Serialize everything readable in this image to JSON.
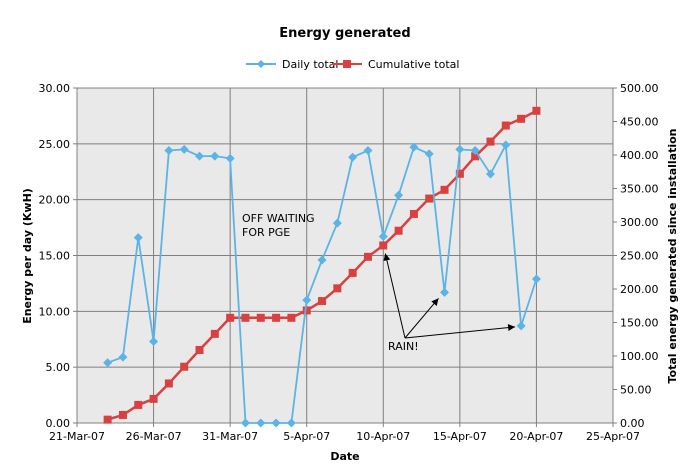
{
  "chart_data": {
    "type": "line",
    "title": "Energy generated",
    "xlabel": "Date",
    "ylabel": "Energy per day (KwH)",
    "y2label": "Total energy generated since installation",
    "xlim": [
      "2007-03-21",
      "2007-04-25"
    ],
    "ylim": [
      0,
      30
    ],
    "y2lim": [
      0,
      500
    ],
    "x_ticks": [
      "21-Mar-07",
      "26-Mar-07",
      "31-Mar-07",
      "5-Apr-07",
      "10-Apr-07",
      "15-Apr-07",
      "20-Apr-07",
      "25-Apr-07"
    ],
    "y_ticks": [
      "0.00",
      "5.00",
      "10.00",
      "15.00",
      "20.00",
      "25.00",
      "30.00"
    ],
    "y2_ticks": [
      "0.00",
      "50.00",
      "100.00",
      "150.00",
      "200.00",
      "250.00",
      "300.00",
      "350.00",
      "400.00",
      "450.00",
      "500.00"
    ],
    "grid": true,
    "legend": "top",
    "series": [
      {
        "name": "Daily total",
        "axis": "left",
        "color": "#5bb4e5",
        "marker": "diamond",
        "x": [
          "2007-03-23",
          "2007-03-24",
          "2007-03-25",
          "2007-03-26",
          "2007-03-27",
          "2007-03-28",
          "2007-03-29",
          "2007-03-30",
          "2007-03-31",
          "2007-04-01",
          "2007-04-02",
          "2007-04-03",
          "2007-04-04",
          "2007-04-05",
          "2007-04-06",
          "2007-04-07",
          "2007-04-08",
          "2007-04-09",
          "2007-04-10",
          "2007-04-11",
          "2007-04-12",
          "2007-04-13",
          "2007-04-14",
          "2007-04-15",
          "2007-04-16",
          "2007-04-17",
          "2007-04-18",
          "2007-04-19",
          "2007-04-20"
        ],
        "values": [
          5.4,
          5.9,
          16.6,
          7.3,
          24.4,
          24.5,
          23.9,
          23.9,
          23.7,
          0,
          0,
          0,
          0,
          11.0,
          14.6,
          17.9,
          23.8,
          24.4,
          16.7,
          20.4,
          24.7,
          24.1,
          11.7,
          24.5,
          24.4,
          22.3,
          24.9,
          8.7,
          12.9
        ]
      },
      {
        "name": "Cumulative total",
        "axis": "right",
        "color": "#d94040",
        "marker": "square",
        "x": [
          "2007-03-23",
          "2007-03-24",
          "2007-03-25",
          "2007-03-26",
          "2007-03-27",
          "2007-03-28",
          "2007-03-29",
          "2007-03-30",
          "2007-03-31",
          "2007-04-01",
          "2007-04-02",
          "2007-04-03",
          "2007-04-04",
          "2007-04-05",
          "2007-04-06",
          "2007-04-07",
          "2007-04-08",
          "2007-04-09",
          "2007-04-10",
          "2007-04-11",
          "2007-04-12",
          "2007-04-13",
          "2007-04-14",
          "2007-04-15",
          "2007-04-16",
          "2007-04-17",
          "2007-04-18",
          "2007-04-19",
          "2007-04-20"
        ],
        "values": [
          5,
          12,
          27,
          36,
          59,
          84,
          109,
          133,
          157,
          157,
          157,
          157,
          157,
          168,
          182,
          201,
          224,
          248,
          265,
          287,
          312,
          335,
          348,
          372,
          398,
          420,
          444,
          454,
          466
        ]
      }
    ],
    "annotations": [
      {
        "text": "OFF WAITING",
        "line2": "FOR PGE"
      },
      {
        "text": "RAIN!",
        "arrows_to": [
          "2007-04-10",
          "2007-04-14",
          "2007-04-19"
        ]
      }
    ]
  }
}
